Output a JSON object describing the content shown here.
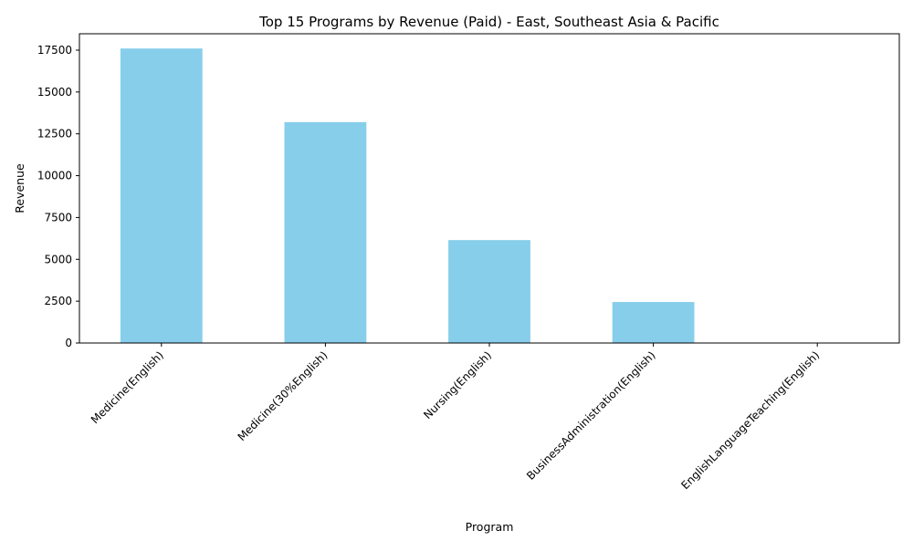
{
  "chart_data": {
    "type": "bar",
    "title": "Top 15 Programs by Revenue (Paid) - East, Southeast Asia & Pacific",
    "xlabel": "Program",
    "ylabel": "Revenue",
    "categories": [
      "Medicine(English)",
      "Medicine(30%English)",
      "Nursing(English)",
      "BusinessAdministration(English)",
      "EnglishLanguageTeaching(English)"
    ],
    "values": [
      17600,
      13200,
      6150,
      2450,
      0
    ],
    "ylim": [
      0,
      18480
    ],
    "yticks": [
      0,
      2500,
      5000,
      7500,
      10000,
      12500,
      15000,
      17500
    ],
    "bar_color": "#87CEEB",
    "grid": false,
    "legend": "none"
  }
}
